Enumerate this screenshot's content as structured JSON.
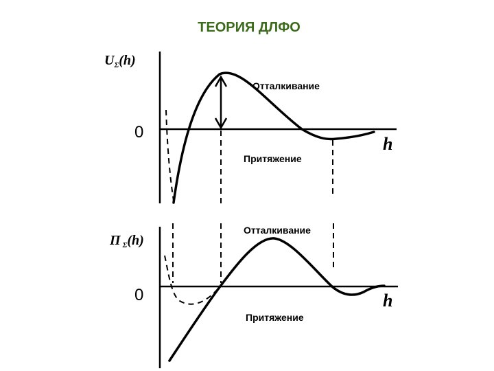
{
  "header": {
    "title": "ТЕОРИЯ ДЛФО"
  },
  "panels": [
    {
      "y_label": {
        "symbol": "U",
        "subscript": "Σ",
        "argument": "(h)"
      },
      "zero_label": "0",
      "x_label": "h",
      "repulsion_label": "Отталкивание",
      "attraction_label": "Притяжение"
    },
    {
      "y_label": {
        "symbol": "П",
        "subscript": "Σ",
        "argument": "(h)"
      },
      "zero_label": "0",
      "x_label": "h",
      "repulsion_label": "Отталкивание",
      "attraction_label": "Притяжение"
    }
  ]
}
